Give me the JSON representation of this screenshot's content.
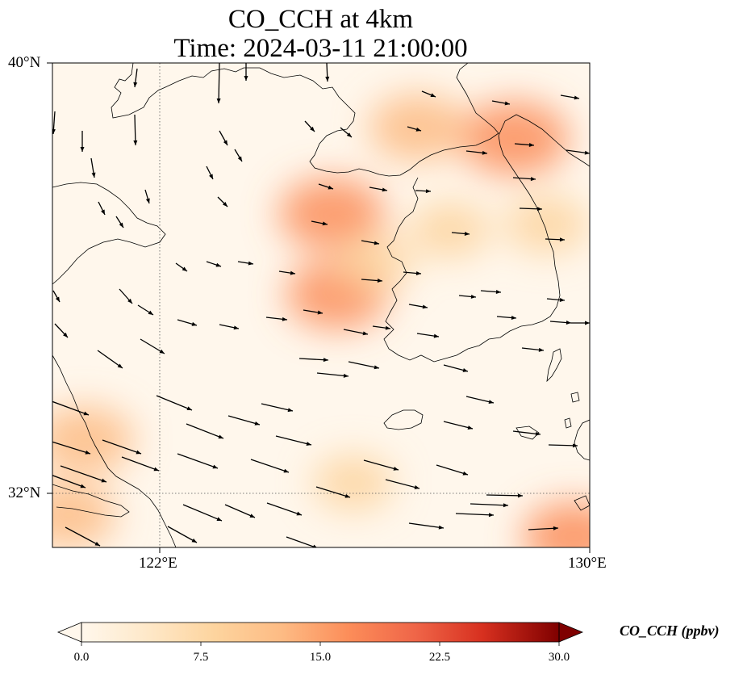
{
  "title": "CO_CCH at 4km",
  "subtitle": "Time: 2024-03-11 21:00:00",
  "map": {
    "lat_range": [
      31.0,
      40.0
    ],
    "lon_range": [
      120.0,
      130.0
    ],
    "lat_labels": [
      {
        "value": 40,
        "text": "40°N"
      },
      {
        "value": 32,
        "text": "32°N"
      }
    ],
    "lon_labels": [
      {
        "value": 122,
        "text": "122°E"
      },
      {
        "value": 130,
        "text": "130°E"
      }
    ],
    "gridlines": {
      "lat": [
        32
      ],
      "lon": [
        122
      ],
      "style": "dotted"
    },
    "field": "CO_CCH",
    "level": "4km",
    "plumes": [
      {
        "lon": 128.6,
        "lat": 38.6,
        "value": 17
      },
      {
        "lon": 126.8,
        "lat": 38.8,
        "value": 14
      },
      {
        "lon": 125.2,
        "lat": 37.2,
        "value": 16
      },
      {
        "lon": 125.3,
        "lat": 35.7,
        "value": 15
      },
      {
        "lon": 126.0,
        "lat": 36.3,
        "value": 8
      },
      {
        "lon": 127.4,
        "lat": 36.9,
        "value": 9
      },
      {
        "lon": 129.2,
        "lat": 37.0,
        "value": 10
      },
      {
        "lon": 120.6,
        "lat": 33.0,
        "value": 14
      },
      {
        "lon": 120.3,
        "lat": 31.6,
        "value": 13
      },
      {
        "lon": 125.6,
        "lat": 32.2,
        "value": 9
      },
      {
        "lon": 129.7,
        "lat": 31.2,
        "value": 15
      }
    ],
    "wind_vectors": "flow from west-northwest over Korea and Yellow Sea; from north over Liaodong"
  },
  "colorbar": {
    "label": "CO_CCH (ppbv)",
    "colormap": "OrRd",
    "min": 0.0,
    "max": 30.0,
    "extend": "both",
    "ticks": [
      {
        "value": 0.0,
        "text": "0.0"
      },
      {
        "value": 7.5,
        "text": "7.5"
      },
      {
        "value": 15.0,
        "text": "15.0"
      },
      {
        "value": 22.5,
        "text": "22.5"
      },
      {
        "value": 30.0,
        "text": "30.0"
      }
    ]
  }
}
